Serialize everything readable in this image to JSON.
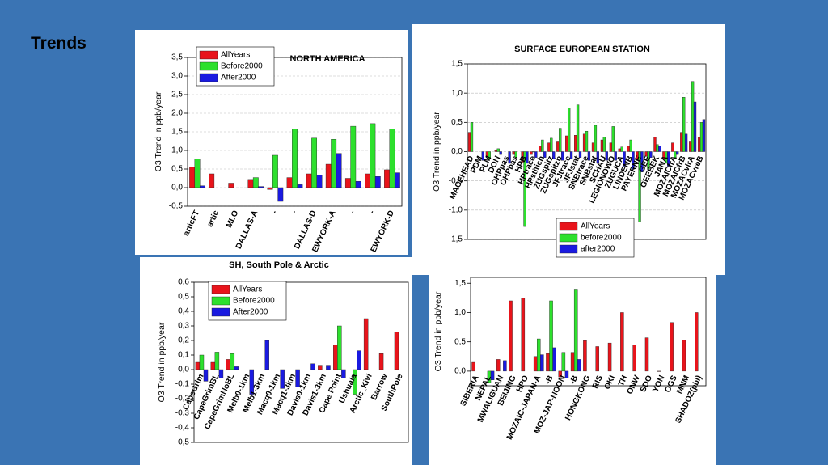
{
  "slide_title": "Trends",
  "chart_data": [
    {
      "type": "bar",
      "title": "NORTH AMERICA",
      "y_label": "O3 Trend in ppb/year",
      "categories": [
        "articFT",
        "artic",
        "MLO",
        "DALLAS-A",
        "-",
        "-",
        "DALLAS-D",
        "EWYORK-A",
        "-",
        "-",
        "EWYORK-D"
      ],
      "series": [
        {
          "name": "AllYears",
          "color": "#e8141b",
          "values": [
            0.55,
            0.37,
            0.12,
            0.22,
            -0.05,
            0.27,
            0.37,
            0.63,
            0.25,
            0.37,
            0.48
          ]
        },
        {
          "name": "Before2000",
          "color": "#2de02d",
          "values": [
            0.77,
            null,
            null,
            0.27,
            0.87,
            1.57,
            1.33,
            1.3,
            1.65,
            1.72,
            1.57
          ]
        },
        {
          "name": "After2000",
          "color": "#1a1ae0",
          "values": [
            0.05,
            null,
            null,
            0.03,
            -0.37,
            0.08,
            0.33,
            0.92,
            0.17,
            0.3,
            0.4
          ]
        }
      ],
      "ylim": [
        -0.5,
        3.5
      ],
      "yticks": [
        {
          "value": -0.5,
          "label": "-0,5"
        },
        {
          "value": 0,
          "label": "0,0"
        },
        {
          "value": 0.5,
          "label": "0,5"
        },
        {
          "value": 1,
          "label": "1,0"
        },
        {
          "value": 1.5,
          "label": "1,5"
        },
        {
          "value": 2,
          "label": "2,0"
        },
        {
          "value": 2.5,
          "label": "2,5"
        },
        {
          "value": 3,
          "label": "3,0"
        },
        {
          "value": 3.5,
          "label": "3,5"
        }
      ],
      "grid": true,
      "legend": "upper left"
    },
    {
      "type": "bar",
      "title": "SURFACE EUROPEAN STATION",
      "y_label": "O3 Trend in ppb/year",
      "categories": [
        "MACEHEAD",
        "PDM",
        "PLM",
        "DON",
        "OHPpas",
        "OHPbas",
        "HPB",
        "HPtrace",
        "HPstitich",
        "ZUGspitz",
        "ZUGspitzb",
        "JFJtrace",
        "JFJstat",
        "SNBtrace",
        "SNBstat",
        "SCHAU",
        "LEGIONOWO",
        "ZUGUCA",
        "LINDENB",
        "PAYERNE",
        "GEE",
        "GEEBEK",
        "JANA",
        "MOZAICfrA",
        "MOZAICfrB",
        "MOZACvirA",
        "MOZACvreB"
      ],
      "series": [
        {
          "name": "AllYears",
          "color": "#e8141b",
          "values": [
            0.33,
            null,
            -0.08,
            0.02,
            null,
            -0.05,
            -0.18,
            -0.05,
            0.1,
            0.15,
            0.18,
            0.27,
            0.28,
            0.3,
            0.15,
            0.2,
            0.15,
            0.05,
            0.1,
            -0.15,
            -0.08,
            0.25,
            -0.12,
            0.15,
            0.33,
            0.18,
            0.25
          ]
        },
        {
          "name": "before2000",
          "color": "#2de02d",
          "values": [
            0.5,
            null,
            -0.12,
            0.05,
            null,
            -0.1,
            -1.28,
            0.0,
            0.2,
            0.23,
            0.4,
            0.75,
            0.8,
            0.35,
            0.45,
            0.25,
            0.43,
            0.08,
            0.2,
            -1.2,
            -0.3,
            0.12,
            -0.2,
            -0.1,
            0.93,
            1.2,
            0.5
          ]
        },
        {
          "name": "after2000",
          "color": "#1a1ae0",
          "values": [
            null,
            -0.15,
            null,
            -0.05,
            -0.2,
            null,
            -0.2,
            -0.1,
            -0.1,
            -0.12,
            -0.15,
            -0.12,
            -0.1,
            -0.15,
            -0.2,
            -0.15,
            -0.15,
            -0.25,
            -0.3,
            -0.35,
            -0.1,
            0.1,
            -0.25,
            -0.05,
            0.3,
            0.85,
            0.55
          ]
        }
      ],
      "ylim": [
        -1.5,
        1.5
      ],
      "yticks": [
        {
          "value": -1.5,
          "label": "-1,5"
        },
        {
          "value": -1,
          "label": "-1,0"
        },
        {
          "value": -0.5,
          "label": "-0,5"
        },
        {
          "value": 0,
          "label": "0,0"
        },
        {
          "value": 0.5,
          "label": "0,5"
        },
        {
          "value": 1,
          "label": "1,0"
        },
        {
          "value": 1.5,
          "label": "1,5"
        }
      ],
      "grid": true,
      "legend": "lower center"
    },
    {
      "type": "bar",
      "title": "SH, South Pole & Arctic",
      "y_label": "O3 Trend in ppb/year",
      "categories": [
        "CapeGrim",
        "CapeGrimBL",
        "CapeGrimNoBL",
        "Melb0-1km",
        "Melb1-3km",
        "Macq0-1km",
        "Macq1-3km",
        "Davis0-1km",
        "Davis1-3km",
        "Cape Point",
        "Ushuaia",
        "Arctic_Kivi",
        "Barrow",
        "SouthPole"
      ],
      "series": [
        {
          "name": "AllYears",
          "color": "#e8141b",
          "values": [
            0.05,
            0.05,
            0.07,
            null,
            null,
            null,
            null,
            null,
            0.03,
            0.17,
            null,
            0.35,
            0.11,
            0.26
          ]
        },
        {
          "name": "Before2000",
          "color": "#2de02d",
          "values": [
            0.1,
            0.12,
            0.11,
            null,
            null,
            null,
            null,
            null,
            null,
            0.3,
            -0.17,
            null,
            null,
            null
          ]
        },
        {
          "name": "After2000",
          "color": "#1a1ae0",
          "values": [
            -0.08,
            -0.06,
            0.02,
            -0.17,
            0.2,
            -0.13,
            -0.12,
            0.04,
            0.03,
            -0.06,
            0.13,
            null,
            null,
            null
          ]
        }
      ],
      "ylim": [
        -0.5,
        0.6
      ],
      "yticks": [
        {
          "value": -0.5,
          "label": "-0,5"
        },
        {
          "value": -0.4,
          "label": "-0,4"
        },
        {
          "value": -0.3,
          "label": "-0,3"
        },
        {
          "value": -0.2,
          "label": "-0,2"
        },
        {
          "value": -0.1,
          "label": "-0,1"
        },
        {
          "value": 0,
          "label": "0,0"
        },
        {
          "value": 0.1,
          "label": "0,1"
        },
        {
          "value": 0.2,
          "label": "0,2"
        },
        {
          "value": 0.3,
          "label": "0,3"
        },
        {
          "value": 0.4,
          "label": "0,4"
        },
        {
          "value": 0.5,
          "label": "0,5"
        },
        {
          "value": 0.6,
          "label": "0,6"
        }
      ],
      "grid": false,
      "legend": "upper left"
    },
    {
      "type": "bar",
      "y_label": "O3 Trend in ppb/year",
      "categories": [
        "SIBERIA",
        "NEPAL",
        "MWALIGUAN",
        "BEIJING",
        "HPO",
        "MOZAIC-JAPAN-A",
        "-B",
        "MOZ-JAP-NOON",
        "-B",
        "HONGKONG",
        "RIS",
        "OKI",
        "TH",
        "ONW",
        "SDO",
        "YON",
        "OGS",
        "MNM",
        "SHADOZ(pbl)"
      ],
      "series": [
        {
          "color": "#e8141b",
          "values": [
            0.15,
            null,
            0.2,
            1.2,
            1.25,
            0.25,
            0.3,
            -0.1,
            0.32,
            0.52,
            0.42,
            0.48,
            1.0,
            0.45,
            0.57,
            0.0,
            0.83,
            0.53,
            1.0
          ]
        },
        {
          "color": "#2de02d",
          "values": [
            null,
            -0.2,
            null,
            null,
            null,
            0.55,
            1.2,
            0.32,
            1.4,
            null,
            null,
            null,
            null,
            null,
            null,
            null,
            null,
            null,
            null
          ]
        },
        {
          "color": "#1a1ae0",
          "values": [
            null,
            -0.15,
            0.18,
            null,
            null,
            0.28,
            0.4,
            -0.12,
            0.2,
            null,
            null,
            null,
            null,
            null,
            null,
            null,
            null,
            null,
            null
          ]
        }
      ],
      "ylim": [
        -0.25,
        1.6
      ],
      "yticks": [
        {
          "value": 0,
          "label": "0,0"
        },
        {
          "value": 0.5,
          "label": "0,5"
        },
        {
          "value": 1,
          "label": "1,0"
        },
        {
          "value": 1.5,
          "label": "1,5"
        }
      ],
      "grid": false
    }
  ]
}
